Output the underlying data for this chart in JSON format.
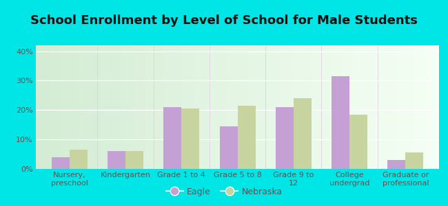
{
  "title": "School Enrollment by Level of School for Male Students",
  "categories": [
    "Nursery,\npreschool",
    "Kindergarten",
    "Grade 1 to 4",
    "Grade 5 to 8",
    "Grade 9 to\n12",
    "College\nundergrad",
    "Graduate or\nprofessional"
  ],
  "eagle_values": [
    4.0,
    6.0,
    21.0,
    14.5,
    21.0,
    31.5,
    3.0
  ],
  "nebraska_values": [
    6.5,
    6.0,
    20.5,
    21.5,
    24.0,
    18.5,
    5.5
  ],
  "eagle_color": "#c4a0d4",
  "nebraska_color": "#c8d4a0",
  "figure_bg": "#00e5e5",
  "plot_bg_left": "#d4ecd4",
  "plot_bg_right": "#f5fff5",
  "ylim": [
    0,
    42
  ],
  "yticks": [
    0,
    10,
    20,
    30,
    40
  ],
  "ytick_labels": [
    "0%",
    "10%",
    "20%",
    "30%",
    "40%"
  ],
  "title_fontsize": 13,
  "tick_fontsize": 8,
  "legend_fontsize": 9,
  "bar_width": 0.32,
  "legend_labels": [
    "Eagle",
    "Nebraska"
  ],
  "grid_color": "#e0ece0",
  "tick_color": "#555555",
  "title_color": "#111111"
}
